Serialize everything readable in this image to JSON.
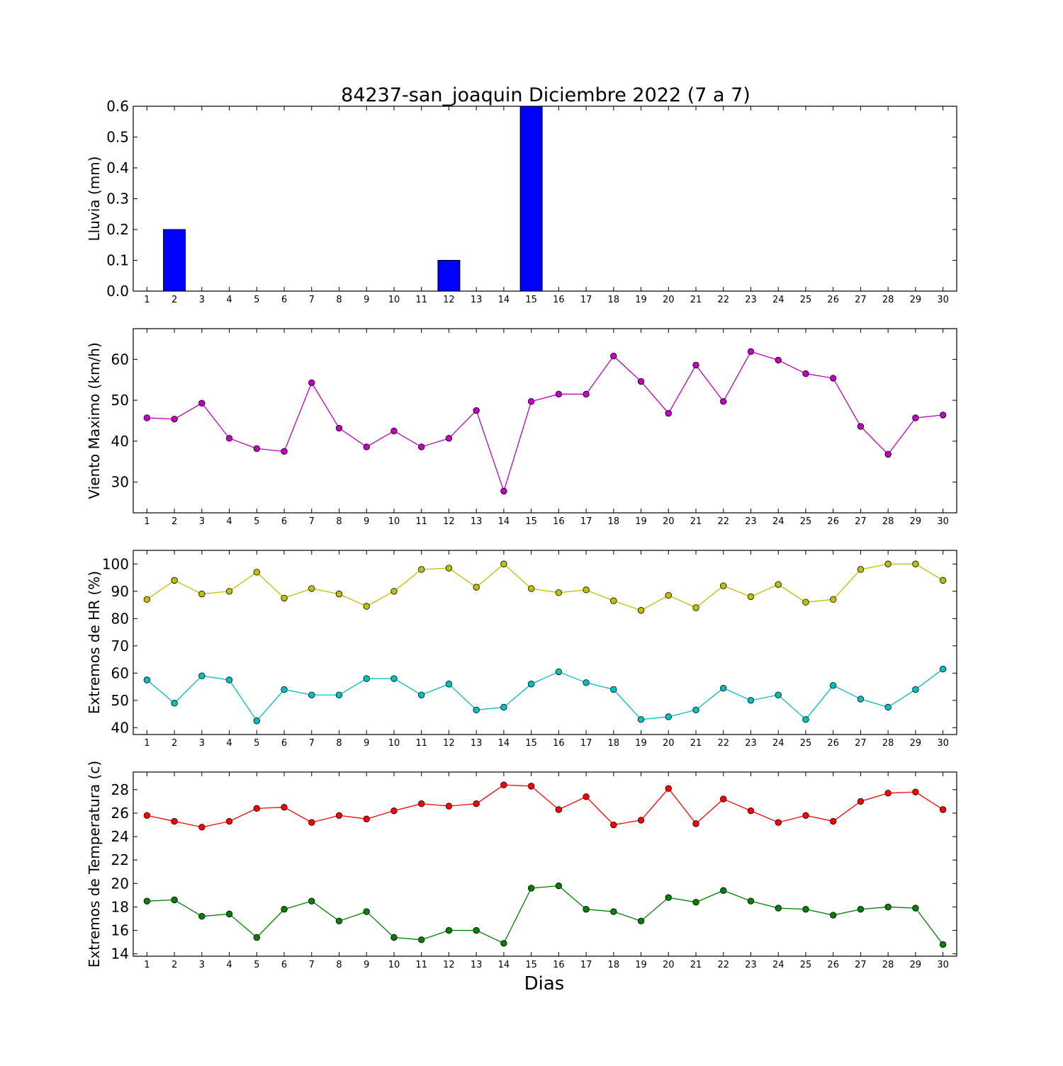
{
  "title": "84237-san_joaquin Diciembre 2022  (7 a 7)",
  "xlabel": "Dias",
  "chart_data": [
    {
      "type": "bar",
      "ylabel": "Lluvia (mm)",
      "x": [
        1,
        2,
        3,
        4,
        5,
        6,
        7,
        8,
        9,
        10,
        11,
        12,
        13,
        14,
        15,
        16,
        17,
        18,
        19,
        20,
        21,
        22,
        23,
        24,
        25,
        26,
        27,
        28,
        29,
        30
      ],
      "ylim": [
        0,
        0.6
      ],
      "yticks": [
        "0.0",
        "0.1",
        "0.2",
        "0.3",
        "0.4",
        "0.5",
        "0.6"
      ],
      "series": [
        {
          "color": "#0000ff",
          "values": [
            0,
            0.2,
            0,
            0,
            0,
            0,
            0,
            0,
            0,
            0,
            0,
            0.1,
            0,
            0,
            0.6,
            0,
            0,
            0,
            0,
            0,
            0,
            0,
            0,
            0,
            0,
            0,
            0,
            0,
            0,
            0
          ]
        }
      ]
    },
    {
      "type": "line",
      "ylabel": "Viento Maximo (km/h)",
      "x": [
        1,
        2,
        3,
        4,
        5,
        6,
        7,
        8,
        9,
        10,
        11,
        12,
        13,
        14,
        15,
        16,
        17,
        18,
        19,
        20,
        21,
        22,
        23,
        24,
        25,
        26,
        27,
        28,
        29,
        30
      ],
      "ylim": [
        22.5,
        67.5
      ],
      "yticks": [
        "30",
        "40",
        "50",
        "60"
      ],
      "series": [
        {
          "color": "#bf00bf",
          "values": [
            45.7,
            45.4,
            49.3,
            40.7,
            38.2,
            37.5,
            54.3,
            43.2,
            38.6,
            42.5,
            38.6,
            40.7,
            47.5,
            27.8,
            49.7,
            51.5,
            51.5,
            60.8,
            54.6,
            46.8,
            58.6,
            49.7,
            61.9,
            59.8,
            56.5,
            55.4,
            43.6,
            36.8,
            45.7,
            46.4
          ]
        }
      ]
    },
    {
      "type": "line",
      "ylabel": "Extremos de HR (%)",
      "x": [
        1,
        2,
        3,
        4,
        5,
        6,
        7,
        8,
        9,
        10,
        11,
        12,
        13,
        14,
        15,
        16,
        17,
        18,
        19,
        20,
        21,
        22,
        23,
        24,
        25,
        26,
        27,
        28,
        29,
        30
      ],
      "ylim": [
        37.5,
        105
      ],
      "yticks": [
        "40",
        "50",
        "60",
        "70",
        "80",
        "90",
        "100"
      ],
      "series": [
        {
          "color": "#bfbf00",
          "values": [
            87,
            94,
            89,
            90,
            97,
            87.5,
            91,
            89,
            84.5,
            90,
            98,
            98.5,
            91.5,
            100,
            91,
            89.5,
            90.5,
            86.5,
            83,
            88.5,
            84,
            92,
            88,
            92.5,
            86,
            87,
            98,
            100,
            100,
            94
          ]
        },
        {
          "color": "#00bfbf",
          "values": [
            57.5,
            49,
            59,
            57.5,
            42.5,
            54,
            52,
            52,
            58,
            58,
            52,
            56,
            46.5,
            47.5,
            56,
            60.5,
            56.5,
            54,
            43,
            44,
            46.5,
            54.5,
            50,
            52,
            43,
            55.5,
            50.5,
            47.5,
            54,
            61.5
          ]
        }
      ]
    },
    {
      "type": "line",
      "ylabel": "Extremos de Temperatura (c)",
      "x": [
        1,
        2,
        3,
        4,
        5,
        6,
        7,
        8,
        9,
        10,
        11,
        12,
        13,
        14,
        15,
        16,
        17,
        18,
        19,
        20,
        21,
        22,
        23,
        24,
        25,
        26,
        27,
        28,
        29,
        30
      ],
      "ylim": [
        13.8,
        29.5
      ],
      "yticks": [
        "14",
        "16",
        "18",
        "20",
        "22",
        "24",
        "26",
        "28"
      ],
      "series": [
        {
          "color": "#ff0000",
          "values": [
            25.8,
            25.3,
            24.8,
            25.3,
            26.4,
            26.5,
            25.2,
            25.8,
            25.5,
            26.2,
            26.8,
            26.6,
            26.8,
            28.4,
            28.3,
            26.3,
            27.4,
            25,
            25.4,
            28.1,
            25.1,
            27.2,
            26.2,
            25.2,
            25.8,
            25.3,
            27,
            27.7,
            27.8,
            26.3
          ]
        },
        {
          "color": "#008000",
          "values": [
            18.5,
            18.6,
            17.2,
            17.4,
            15.4,
            17.8,
            18.5,
            16.8,
            17.6,
            15.4,
            15.2,
            16,
            16,
            14.9,
            19.6,
            19.8,
            17.8,
            17.6,
            16.8,
            18.8,
            18.4,
            19.4,
            18.5,
            17.9,
            17.8,
            17.3,
            17.8,
            18,
            17.9,
            14.8
          ]
        }
      ]
    }
  ]
}
